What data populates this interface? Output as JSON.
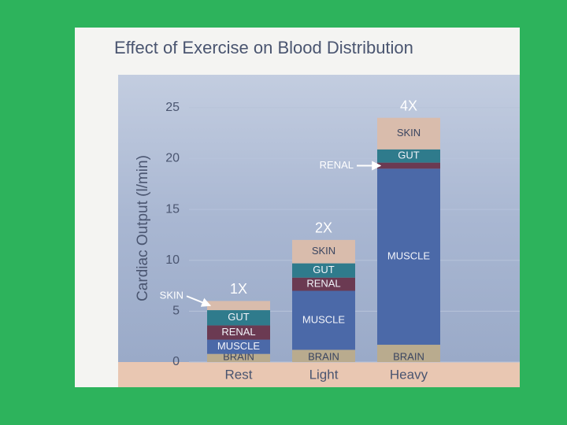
{
  "chart_data": {
    "type": "stacked_bar",
    "title": "Effect of Exercise on Blood Distribution",
    "y_label": "Cardiac Output (l/min)",
    "categories": [
      "Rest",
      "Light",
      "Heavy"
    ],
    "annotations": [
      "1X",
      "2X",
      "4X"
    ],
    "series": [
      {
        "name": "BRAIN",
        "color": "#b9ab8e",
        "values": [
          0.8,
          1.2,
          1.7
        ]
      },
      {
        "name": "MUSCLE",
        "color": "#4b69a8",
        "values": [
          1.4,
          5.8,
          17.3
        ]
      },
      {
        "name": "RENAL",
        "color": "#6b3a52",
        "values": [
          1.4,
          1.3,
          0.6
        ]
      },
      {
        "name": "GUT",
        "color": "#2f7b8c",
        "values": [
          1.5,
          1.4,
          1.3
        ]
      },
      {
        "name": "SKIN",
        "color": "#d9bcac",
        "values": [
          0.9,
          2.3,
          3.1
        ]
      }
    ],
    "ylim": [
      0,
      28
    ],
    "yticks": [
      0,
      5,
      10,
      15,
      20,
      25
    ]
  }
}
